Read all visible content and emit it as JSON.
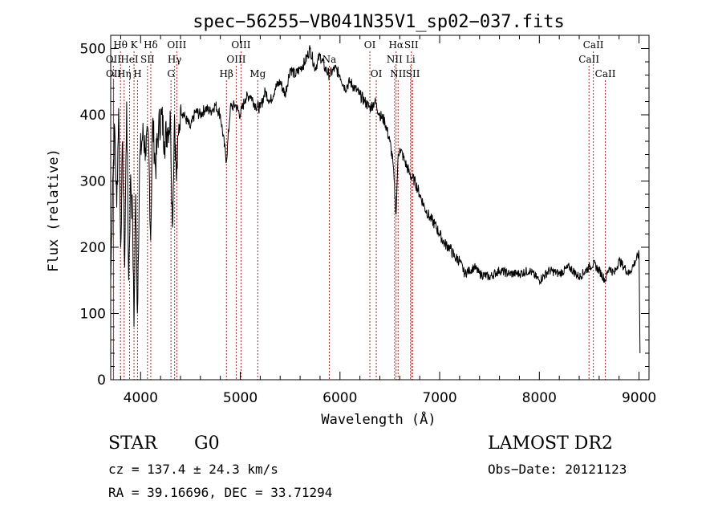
{
  "chart_data": {
    "type": "line",
    "title": "spec−56255−VB041N35V1_sp02−037.fits",
    "xlabel": "Wavelength (Å)",
    "ylabel": "Flux (relative)",
    "xlim": [
      3700,
      9100
    ],
    "ylim": [
      0,
      520
    ],
    "xticks": [
      4000,
      5000,
      6000,
      7000,
      8000,
      9000
    ],
    "yticks": [
      0,
      100,
      200,
      300,
      400,
      500
    ],
    "grid": false,
    "series": [
      {
        "values_note": "",
        "x": [
          3700,
          3720,
          3740,
          3760,
          3780,
          3800,
          3820,
          3840,
          3860,
          3880,
          3900,
          3920,
          3933,
          3950,
          3968,
          3990,
          4020,
          4050,
          4080,
          4101,
          4120,
          4150,
          4180,
          4210,
          4240,
          4270,
          4300,
          4320,
          4340,
          4360,
          4380,
          4400,
          4450,
          4500,
          4550,
          4600,
          4650,
          4700,
          4750,
          4800,
          4861,
          4900,
          4950,
          5000,
          5050,
          5100,
          5150,
          5200,
          5250,
          5300,
          5350,
          5400,
          5450,
          5500,
          5550,
          5600,
          5650,
          5700,
          5750,
          5800,
          5850,
          5893,
          5950,
          6000,
          6050,
          6100,
          6150,
          6200,
          6250,
          6300,
          6350,
          6400,
          6450,
          6500,
          6530,
          6563,
          6580,
          6600,
          6650,
          6700,
          6750,
          6800,
          6850,
          6900,
          6950,
          7000,
          7050,
          7100,
          7150,
          7200,
          7250,
          7300,
          7350,
          7400,
          7500,
          7600,
          7700,
          7800,
          7900,
          8000,
          8100,
          8200,
          8300,
          8400,
          8498,
          8542,
          8600,
          8662,
          8700,
          8750,
          8800,
          8850,
          8900,
          8950,
          9000,
          9010
        ],
        "y": [
          150,
          300,
          380,
          260,
          410,
          200,
          360,
          170,
          420,
          150,
          310,
          240,
          80,
          280,
          100,
          330,
          370,
          350,
          360,
          210,
          390,
          320,
          380,
          400,
          360,
          380,
          390,
          230,
          400,
          300,
          370,
          410,
          395,
          380,
          405,
          400,
          410,
          405,
          415,
          400,
          330,
          410,
          415,
          400,
          425,
          430,
          415,
          410,
          435,
          420,
          440,
          450,
          430,
          470,
          460,
          470,
          480,
          500,
          470,
          490,
          470,
          460,
          470,
          460,
          440,
          450,
          440,
          430,
          420,
          410,
          420,
          400,
          390,
          360,
          330,
          250,
          330,
          350,
          330,
          310,
          300,
          280,
          260,
          245,
          235,
          220,
          205,
          200,
          185,
          180,
          160,
          165,
          170,
          160,
          155,
          165,
          160,
          160,
          165,
          150,
          165,
          160,
          170,
          155,
          170,
          175,
          165,
          150,
          170,
          160,
          180,
          170,
          160,
          175,
          190,
          40
        ]
      }
    ],
    "line_markers": [
      {
        "label": "Hθ",
        "x": 3798,
        "row": 0
      },
      {
        "label": "OII",
        "x": 3727,
        "row": 1
      },
      {
        "label": "OII",
        "x": 3729,
        "row": 2
      },
      {
        "label": "Hη",
        "x": 3835,
        "row": 2
      },
      {
        "label": "K",
        "x": 3934,
        "row": 0
      },
      {
        "label": "Hδ",
        "x": 4102,
        "row": 0
      },
      {
        "label": "HeI",
        "x": 3889,
        "row": 1
      },
      {
        "label": "SII",
        "x": 4069,
        "row": 1
      },
      {
        "label": "H",
        "x": 3969,
        "row": 2
      },
      {
        "label": "OIII",
        "x": 4363,
        "row": 0
      },
      {
        "label": "Hγ",
        "x": 4341,
        "row": 1
      },
      {
        "label": "G",
        "x": 4305,
        "row": 2
      },
      {
        "label": "OIII",
        "x": 5007,
        "row": 0
      },
      {
        "label": "OIII",
        "x": 4959,
        "row": 1
      },
      {
        "label": "Hβ",
        "x": 4861,
        "row": 2
      },
      {
        "label": "Mg",
        "x": 5175,
        "row": 2
      },
      {
        "label": "Na",
        "x": 5893,
        "row": 1
      },
      {
        "label": "OI",
        "x": 6300,
        "row": 0
      },
      {
        "label": "OI",
        "x": 6364,
        "row": 2
      },
      {
        "label": "Hα",
        "x": 6563,
        "row": 0
      },
      {
        "label": "SII",
        "x": 6716,
        "row": 0
      },
      {
        "label": "NII",
        "x": 6548,
        "row": 1
      },
      {
        "label": "Li",
        "x": 6708,
        "row": 1
      },
      {
        "label": "NII",
        "x": 6583,
        "row": 2
      },
      {
        "label": "SII",
        "x": 6731,
        "row": 2
      },
      {
        "label": "CaII",
        "x": 8542,
        "row": 0
      },
      {
        "label": "CaII",
        "x": 8498,
        "row": 1
      },
      {
        "label": "CaII",
        "x": 8662,
        "row": 2
      }
    ],
    "line_color": "#000000",
    "marker_color": "#b22222"
  },
  "info": {
    "object_class": "STAR",
    "subclass": "G0",
    "redshift": "cz =  137.4 ± 24.3 km/s",
    "coords": "RA =  39.16696, DEC =  33.71294",
    "survey": "LAMOST DR2",
    "obs_date": "Obs−Date: 20121123"
  }
}
